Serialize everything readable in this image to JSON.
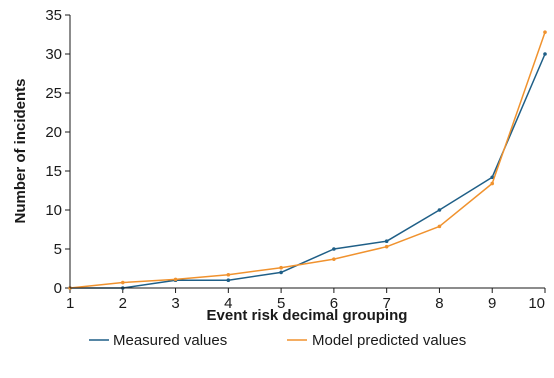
{
  "chart_data": {
    "type": "line",
    "title": "",
    "xlabel": "Event risk decimal grouping",
    "ylabel": "Number of incidents",
    "x": [
      1,
      2,
      3,
      4,
      5,
      6,
      7,
      8,
      9,
      10
    ],
    "xlim": [
      1,
      10
    ],
    "ylim": [
      0,
      35
    ],
    "x_ticks": [
      "1",
      "2",
      "3",
      "4",
      "5",
      "6",
      "7",
      "8",
      "9",
      "10"
    ],
    "y_ticks": [
      "0",
      "5",
      "10",
      "15",
      "20",
      "25",
      "30",
      "35"
    ],
    "grid": false,
    "legend_position": "bottom",
    "series": [
      {
        "name": "Measured values",
        "color": "#1f5f87",
        "values": [
          0,
          0,
          1,
          1,
          2,
          5,
          6,
          10,
          14.2,
          30
        ]
      },
      {
        "name": "Model predicted values",
        "color": "#f0922e",
        "values": [
          0,
          0.7,
          1.1,
          1.7,
          2.6,
          3.7,
          5.3,
          7.9,
          13.4,
          32.8
        ]
      }
    ]
  }
}
